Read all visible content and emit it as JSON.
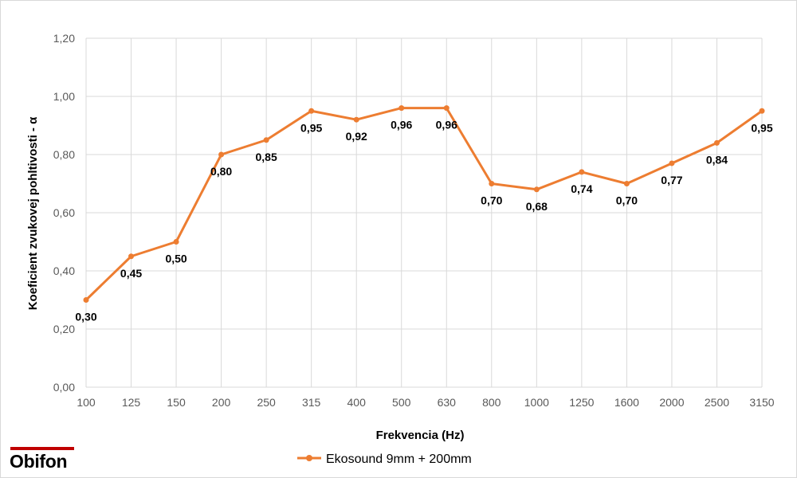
{
  "chart_data": {
    "type": "line",
    "categories": [
      "100",
      "125",
      "150",
      "200",
      "250",
      "315",
      "400",
      "500",
      "630",
      "800",
      "1000",
      "1250",
      "1600",
      "2000",
      "2500",
      "3150"
    ],
    "series": [
      {
        "name": "Ekosound 9mm + 200mm",
        "values": [
          0.3,
          0.45,
          0.5,
          0.8,
          0.85,
          0.95,
          0.92,
          0.96,
          0.96,
          0.7,
          0.68,
          0.74,
          0.7,
          0.77,
          0.84,
          0.95
        ],
        "labels": [
          "0,30",
          "0,45",
          "0,50",
          "0,80",
          "0,85",
          "0,95",
          "0,92",
          "0,96",
          "0,96",
          "0,70",
          "0,68",
          "0,74",
          "0,70",
          "0,77",
          "0,84",
          "0,95"
        ],
        "color": "#ed7d31"
      }
    ],
    "xlabel": "Frekvencia (Hz)",
    "ylabel": "Koeficient zvukovej pohltivosti - α",
    "ylim": [
      0,
      1.2
    ],
    "yticks": [
      0,
      0.2,
      0.4,
      0.6,
      0.8,
      1.0,
      1.2
    ],
    "ytick_labels": [
      "0,00",
      "0,20",
      "0,40",
      "0,60",
      "0,80",
      "1,00",
      "1,20"
    ],
    "grid": true,
    "legend_position": "bottom"
  },
  "brand": {
    "logo_text": "Obifon",
    "logo_bar_color": "#c00000"
  },
  "colors": {
    "grid": "#d9d9d9",
    "line": "#ed7d31"
  }
}
